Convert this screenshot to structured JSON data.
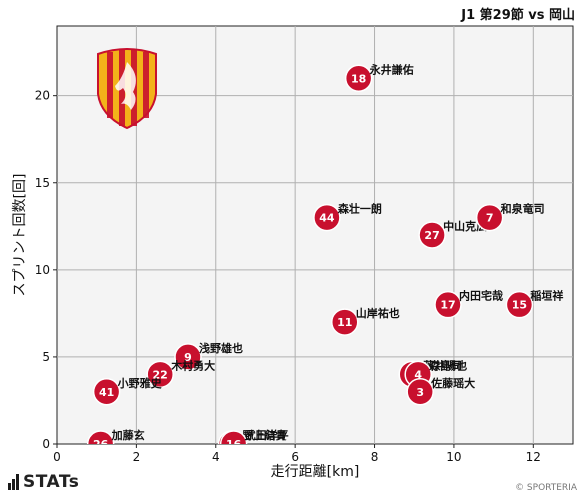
{
  "header": {
    "title": "J1 第29節 vs 岡山"
  },
  "footer": {
    "brand": "STATs",
    "copyright": "© SPORTERIA"
  },
  "colors": {
    "point": "#c8102e",
    "grid": "#b0b0b0",
    "plot_bg": "#f4f4f4"
  },
  "chart_data": {
    "type": "scatter",
    "title": "",
    "xlabel": "走行距離[km]",
    "ylabel": "スプリント回数[回]",
    "xlim": [
      0,
      13
    ],
    "ylim": [
      0,
      24
    ],
    "xticks": [
      0,
      2,
      4,
      6,
      8,
      10,
      12
    ],
    "yticks": [
      0,
      5,
      10,
      15,
      20
    ],
    "grid": true,
    "points": [
      {
        "number": "18",
        "name": "永井謙佑",
        "x": 7.6,
        "y": 21
      },
      {
        "number": "44",
        "name": "森壮一朗",
        "x": 6.8,
        "y": 13
      },
      {
        "number": "27",
        "name": "中山克広",
        "x": 9.45,
        "y": 12
      },
      {
        "number": "7",
        "name": "和泉竜司",
        "x": 10.9,
        "y": 13
      },
      {
        "number": "17",
        "name": "内田宅哉",
        "x": 9.85,
        "y": 8
      },
      {
        "number": "15",
        "name": "稲垣祥",
        "x": 11.65,
        "y": 8
      },
      {
        "number": "11",
        "name": "山岸祐也",
        "x": 7.25,
        "y": 7
      },
      {
        "number": "13",
        "name": "藤井陽也",
        "x": 8.95,
        "y": 4
      },
      {
        "number": "4",
        "name": "森島司",
        "x": 9.1,
        "y": 4
      },
      {
        "number": "3",
        "name": "佐藤瑶大",
        "x": 9.15,
        "y": 3
      },
      {
        "number": "9",
        "name": "浅野雄也",
        "x": 3.3,
        "y": 5
      },
      {
        "number": "22",
        "name": "木村勇大",
        "x": 2.6,
        "y": 4
      },
      {
        "number": "41",
        "name": "小野雅史",
        "x": 1.25,
        "y": 3
      },
      {
        "number": "26",
        "name": "加藤玄",
        "x": 1.1,
        "y": 0
      },
      {
        "number": "1",
        "name": "野上結貴",
        "x": 4.4,
        "y": 0
      },
      {
        "number": "16",
        "name": "武田洋平",
        "x": 4.45,
        "y": 0
      }
    ]
  }
}
